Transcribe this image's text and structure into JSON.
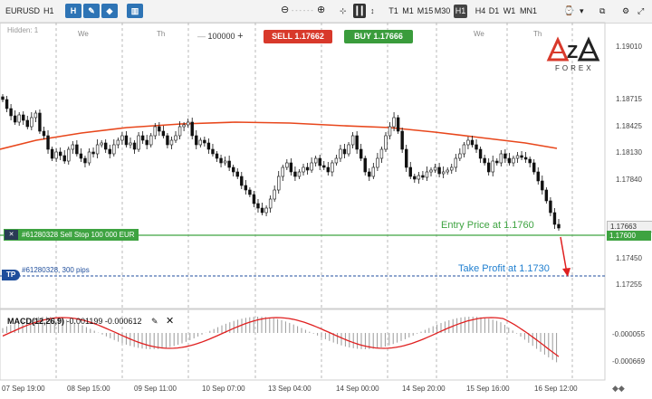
{
  "toolbar": {
    "symbol": "EURUSD",
    "timeframe": "H1",
    "timeframes": [
      "T1",
      "M1",
      "M15",
      "M30",
      "H1",
      "H4",
      "D1",
      "W1",
      "MN1"
    ],
    "active_timeframe": "H1",
    "zoom_out": "⊖",
    "zoom_in": "⊕"
  },
  "trade": {
    "sell_label": "SELL 1.17662",
    "buy_label": "BUY 1.17666",
    "quantity": "100000",
    "quantity_plus": "+",
    "quantity_minus": "—"
  },
  "chart": {
    "hidden_label": "Hidden: 1",
    "day_labels": [
      "We",
      "Th",
      "We",
      "Th"
    ],
    "price_labels": [
      "1.19010",
      "1.18715",
      "1.18425",
      "1.18130",
      "1.17840",
      "1.17450",
      "1.17255"
    ],
    "current_price": "1.17663",
    "entry_price_tag": "1.17600",
    "order_label": "#61280328 Sell Stop 100 000 EUR",
    "tp_label": "TP",
    "tp_text": "#61280328, 300 pips",
    "entry_annotation": "Entry Price at 1.1760",
    "tp_annotation": "Take Profit at 1.1730",
    "logo_top": "AZA",
    "logo_bottom": "FOREX"
  },
  "macd": {
    "title": "MACD(12,26,9)",
    "values": "-0.001199  -0.000612",
    "labels": [
      "-0.000055",
      "-0.000669"
    ]
  },
  "x_axis": [
    "07 Sep 19:00",
    "08 Sep 15:00",
    "09 Sep 11:00",
    "10 Sep 07:00",
    "13 Sep 04:00",
    "14 Sep 00:00",
    "14 Sep 20:00",
    "15 Sep 16:00",
    "16 Sep 12:00"
  ],
  "colors": {
    "sell": "#d8392b",
    "buy": "#3a9c3c",
    "entry_line": "#3ea341",
    "tp_line": "#1f4e9c",
    "ma_line": "#e8471c",
    "arrow": "#e02020"
  }
}
